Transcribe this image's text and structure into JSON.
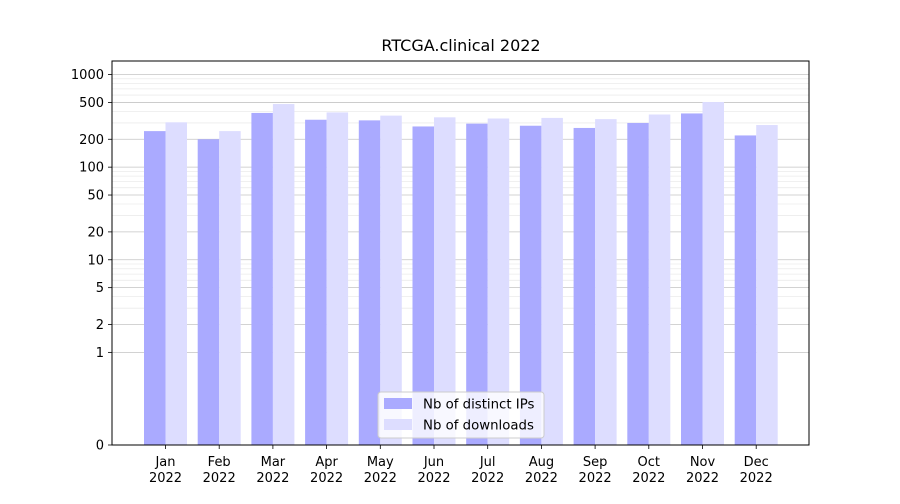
{
  "chart_data": {
    "type": "bar",
    "title": "RTCGA.clinical 2022",
    "xlabel": "",
    "ylabel": "",
    "y_scale": "symlog",
    "ylim": [
      0,
      1400
    ],
    "y_ticks": [
      0,
      1,
      2,
      5,
      10,
      20,
      50,
      100,
      200,
      500,
      1000
    ],
    "y_tick_labels": [
      "0",
      "1",
      "2",
      "5",
      "10",
      "20",
      "50",
      "100",
      "200",
      "500",
      "1000"
    ],
    "grid": true,
    "legend_position": "lower center",
    "categories": [
      [
        "Jan",
        "2022"
      ],
      [
        "Feb",
        "2022"
      ],
      [
        "Mar",
        "2022"
      ],
      [
        "Apr",
        "2022"
      ],
      [
        "May",
        "2022"
      ],
      [
        "Jun",
        "2022"
      ],
      [
        "Jul",
        "2022"
      ],
      [
        "Aug",
        "2022"
      ],
      [
        "Sep",
        "2022"
      ],
      [
        "Oct",
        "2022"
      ],
      [
        "Nov",
        "2022"
      ],
      [
        "Dec",
        "2022"
      ]
    ],
    "series": [
      {
        "name": "Nb of distinct IPs",
        "color": "#aaaaff",
        "values": [
          245,
          200,
          385,
          325,
          320,
          275,
          295,
          280,
          265,
          300,
          380,
          220
        ]
      },
      {
        "name": "Nb of downloads",
        "color": "#ddddff",
        "values": [
          305,
          245,
          480,
          390,
          360,
          345,
          335,
          340,
          330,
          370,
          505,
          285
        ]
      }
    ]
  }
}
